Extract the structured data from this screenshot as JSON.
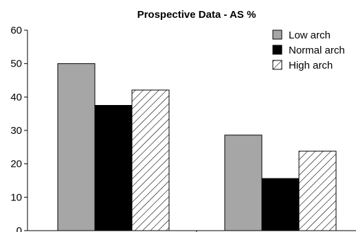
{
  "chart_data": {
    "type": "bar",
    "title": "Prospective Data - AS %",
    "xlabel": "",
    "ylabel": "",
    "ylim": [
      0,
      60
    ],
    "yticks": [
      0,
      10,
      20,
      30,
      40,
      50,
      60
    ],
    "categories": [
      "",
      ""
    ],
    "series": [
      {
        "name": "Low arch",
        "values": [
          50,
          28.6
        ],
        "color": "#a6a6a6",
        "pattern": "solid"
      },
      {
        "name": "Normal arch",
        "values": [
          37.5,
          15.6
        ],
        "color": "#000000",
        "pattern": "solid"
      },
      {
        "name": "High arch",
        "values": [
          42.1,
          23.8
        ],
        "color": "#ffffff",
        "pattern": "diagonal-hatch"
      }
    ],
    "legend": {
      "position": "top-right"
    },
    "grid": false
  }
}
